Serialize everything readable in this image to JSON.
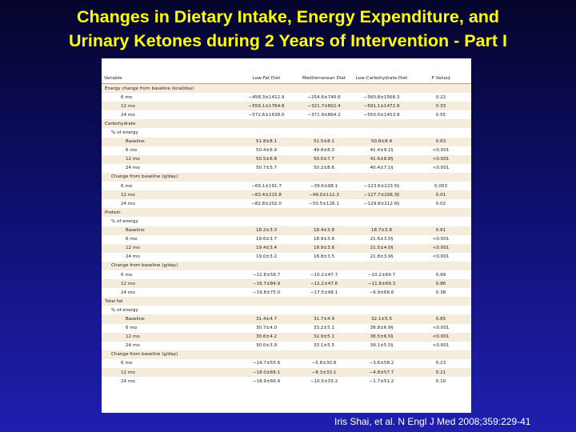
{
  "slide": {
    "title_line1": "Changes in Dietary Intake, Energy Expenditure, and",
    "title_line2": "Urinary Ketones during 2 Years of Intervention - Part I",
    "citation": "Iris Shai,  et al. N Engl J Med 2008;359:229-41"
  },
  "table": {
    "headers": [
      "Variable",
      "Low-Fat Diet",
      "Mediterranean Diet",
      "Low-Carbohydrate Diet",
      "P Value‡"
    ],
    "rows": [
      {
        "level": 1,
        "cells": [
          "Energy change from baseline (kcal/day)",
          "",
          "",
          "",
          ""
        ]
      },
      {
        "level": 3,
        "cells": [
          "6 mo",
          "−458.3±1412.9",
          "−254.6±740.6",
          "−560.8±1568.3",
          "0.22"
        ]
      },
      {
        "level": 3,
        "cells": [
          "12 mo",
          "−559.1±1764.8",
          "−321.7±802.4",
          "−591.1±1472.9",
          "0.33"
        ]
      },
      {
        "level": 3,
        "cells": [
          "24 mo",
          "−572.6±1638.0",
          "−371.9±864.2",
          "−550.0±1453.9",
          "0.55"
        ]
      },
      {
        "level": 1,
        "cells": [
          "Carbohydrate",
          "",
          "",
          "",
          ""
        ]
      },
      {
        "level": 2,
        "cells": [
          "% of energy",
          "",
          "",
          "",
          ""
        ]
      },
      {
        "level": 4,
        "cells": [
          "Baseline",
          "51.8±8.1",
          "51.5±8.1",
          "50.8±8.4",
          "0.63"
        ]
      },
      {
        "level": 4,
        "cells": [
          "6 mo",
          "50.4±6.9",
          "49.8±8.0",
          "41.4±9.1§",
          "<0.001"
        ]
      },
      {
        "level": 4,
        "cells": [
          "12 mo",
          "50.5±6.8",
          "50.0±7.7",
          "41.6±8.8§",
          "<0.001"
        ]
      },
      {
        "level": 4,
        "cells": [
          "24 mo",
          "50.7±5.7",
          "50.2±8.6",
          "40.4±7.1§",
          "<0.001"
        ]
      },
      {
        "level": 2,
        "cells": [
          "Change from baseline (g/day)",
          "",
          "",
          "",
          ""
        ]
      },
      {
        "level": 3,
        "cells": [
          "6 mo",
          "−69.1±191.7",
          "−39.6±98.1",
          "−123.6±223.5§",
          "0.003"
        ]
      },
      {
        "level": 3,
        "cells": [
          "12 mo",
          "−83.4±215.8",
          "−49.0±112.3",
          "−127.7±206.3§",
          "0.01"
        ]
      },
      {
        "level": 3,
        "cells": [
          "24 mo",
          "−82.8±202.0",
          "−50.5±126.1",
          "−129.8±212.6§",
          "0.02"
        ]
      },
      {
        "level": 1,
        "cells": [
          "Protein",
          "",
          "",
          "",
          ""
        ]
      },
      {
        "level": 2,
        "cells": [
          "% of energy",
          "",
          "",
          "",
          ""
        ]
      },
      {
        "level": 4,
        "cells": [
          "Baseline",
          "18.2±3.3",
          "18.4±3.8",
          "18.7±3.8",
          "0.61"
        ]
      },
      {
        "level": 4,
        "cells": [
          "6 mo",
          "19.6±3.7",
          "18.9±3.6",
          "21.6±3.5§",
          "<0.001"
        ]
      },
      {
        "level": 4,
        "cells": [
          "12 mo",
          "19.4±3.4",
          "18.9±3.6",
          "21.5±4.0§",
          "<0.001"
        ]
      },
      {
        "level": 4,
        "cells": [
          "24 mo",
          "19.0±3.2",
          "18.8±3.5",
          "21.8±3.9§",
          "<0.001"
        ]
      },
      {
        "level": 2,
        "cells": [
          "Change from baseline (g/day)",
          "",
          "",
          "",
          ""
        ]
      },
      {
        "level": 3,
        "cells": [
          "6 mo",
          "−12.8±58.7",
          "−10.2±47.7",
          "−10.2±69.7",
          "0.99"
        ]
      },
      {
        "level": 3,
        "cells": [
          "12 mo",
          "−16.7±84.9",
          "−12.2±47.6",
          "−11.8±69.3",
          "0.86"
        ]
      },
      {
        "level": 3,
        "cells": [
          "24 mo",
          "−19.8±75.0",
          "−17.5±48.1",
          "−6.9±66.6",
          "0.38"
        ]
      },
      {
        "level": 1,
        "cells": [
          "Total fat",
          "",
          "",
          "",
          ""
        ]
      },
      {
        "level": 2,
        "cells": [
          "% of energy",
          "",
          "",
          "",
          ""
        ]
      },
      {
        "level": 4,
        "cells": [
          "Baseline",
          "31.4±4.7",
          "31.7±4.9",
          "32.1±5.5",
          "0.65"
        ]
      },
      {
        "level": 4,
        "cells": [
          "6 mo",
          "30.7±4.0",
          "33.2±5.1",
          "38.8±6.9§",
          "<0.001"
        ]
      },
      {
        "level": 4,
        "cells": [
          "12 mo",
          "30.6±4.2",
          "32.9±5.1",
          "38.5±6.5§",
          "<0.001"
        ]
      },
      {
        "level": 4,
        "cells": [
          "24 mo",
          "30.0±3.9",
          "33.1±5.5",
          "39.1±5.5§",
          "<0.001"
        ]
      },
      {
        "level": 2,
        "cells": [
          "Change from baseline (g/day)",
          "",
          "",
          "",
          ""
        ]
      },
      {
        "level": 3,
        "cells": [
          "6 mo",
          "−14.7±55.6",
          "−5.8±30.8",
          "−3.6±58.2",
          "0.23"
        ]
      },
      {
        "level": 3,
        "cells": [
          "12 mo",
          "−18.0±68.1",
          "−8.3±33.1",
          "−4.8±57.7",
          "0.21"
        ]
      },
      {
        "level": 3,
        "cells": [
          "24 mo",
          "−18.9±66.4",
          "−10.5±33.2",
          "−1.7±51.2",
          "0.10"
        ]
      }
    ]
  }
}
